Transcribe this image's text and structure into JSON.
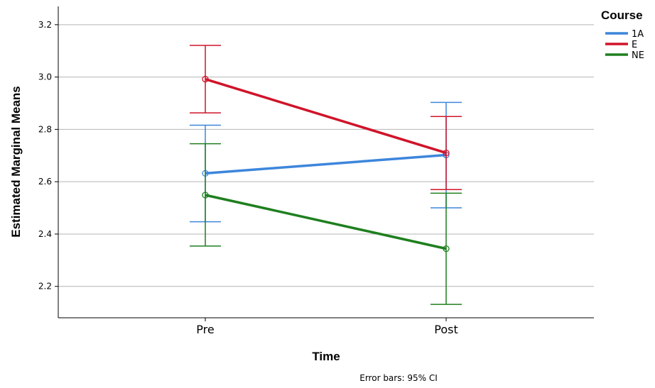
{
  "chart_data": {
    "type": "line",
    "title": "",
    "xlabel": "Time",
    "ylabel": "Estimated Marginal Means",
    "categories": [
      "Pre",
      "Post"
    ],
    "ylim": [
      2.08,
      3.27
    ],
    "yticks": [
      "2.2",
      "2.4",
      "2.6",
      "2.8",
      "3.0",
      "3.2"
    ],
    "grid": true,
    "legend": {
      "title": "Course",
      "position": "top-right"
    },
    "footnote": "Error bars: 95% CI",
    "series": [
      {
        "name": "1A",
        "color": "#3d86dc",
        "values": [
          2.632,
          2.702
        ],
        "ci_lower": [
          2.447,
          2.5
        ],
        "ci_upper": [
          2.816,
          2.903
        ]
      },
      {
        "name": "E",
        "color": "#d0142a",
        "values": [
          2.992,
          2.71
        ],
        "ci_lower": [
          2.863,
          2.57
        ],
        "ci_upper": [
          3.121,
          2.849
        ]
      },
      {
        "name": "NE",
        "color": "#1f7f1f",
        "values": [
          2.549,
          2.344
        ],
        "ci_lower": [
          2.354,
          2.131
        ],
        "ci_upper": [
          2.745,
          2.556
        ]
      }
    ]
  }
}
